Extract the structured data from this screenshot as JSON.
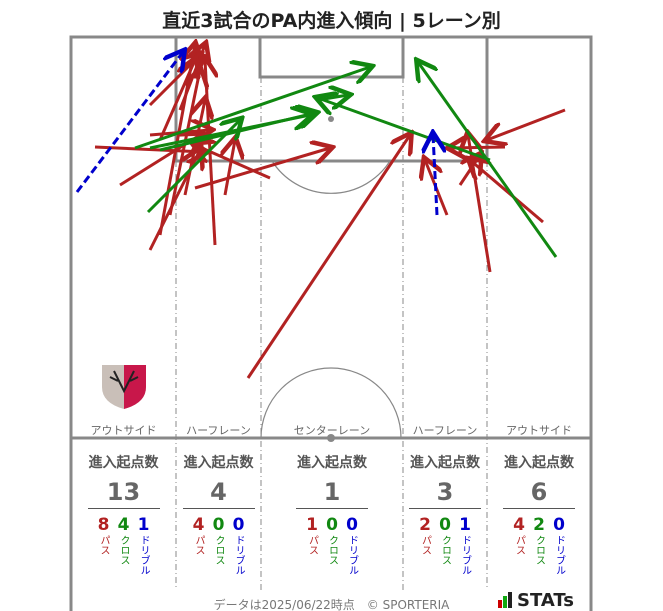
{
  "title": "直近3試合のPA内進入傾向 | 5レーン別",
  "lanes": [
    "アウトサイド",
    "ハーフレーン",
    "センターレーン",
    "ハーフレーン",
    "アウトサイド"
  ],
  "stats_heading": "進入起点数",
  "stat_labels": {
    "pass": "パス",
    "cross": "クロス",
    "dribble": "ドリブル"
  },
  "stats": [
    {
      "total": "13",
      "pass": "8",
      "cross": "4",
      "dribble": "1"
    },
    {
      "total": "4",
      "pass": "4",
      "cross": "0",
      "dribble": "0"
    },
    {
      "total": "1",
      "pass": "1",
      "cross": "0",
      "dribble": "0"
    },
    {
      "total": "3",
      "pass": "2",
      "cross": "0",
      "dribble": "1"
    },
    {
      "total": "6",
      "pass": "4",
      "cross": "2",
      "dribble": "0"
    }
  ],
  "colors": {
    "pass": "#b22222",
    "cross": "#118811",
    "dribble": "#0000cc",
    "lines": "#888888"
  },
  "footer": "データは2025/06/22時点　© SPORTERIA",
  "brand": "STATs"
}
